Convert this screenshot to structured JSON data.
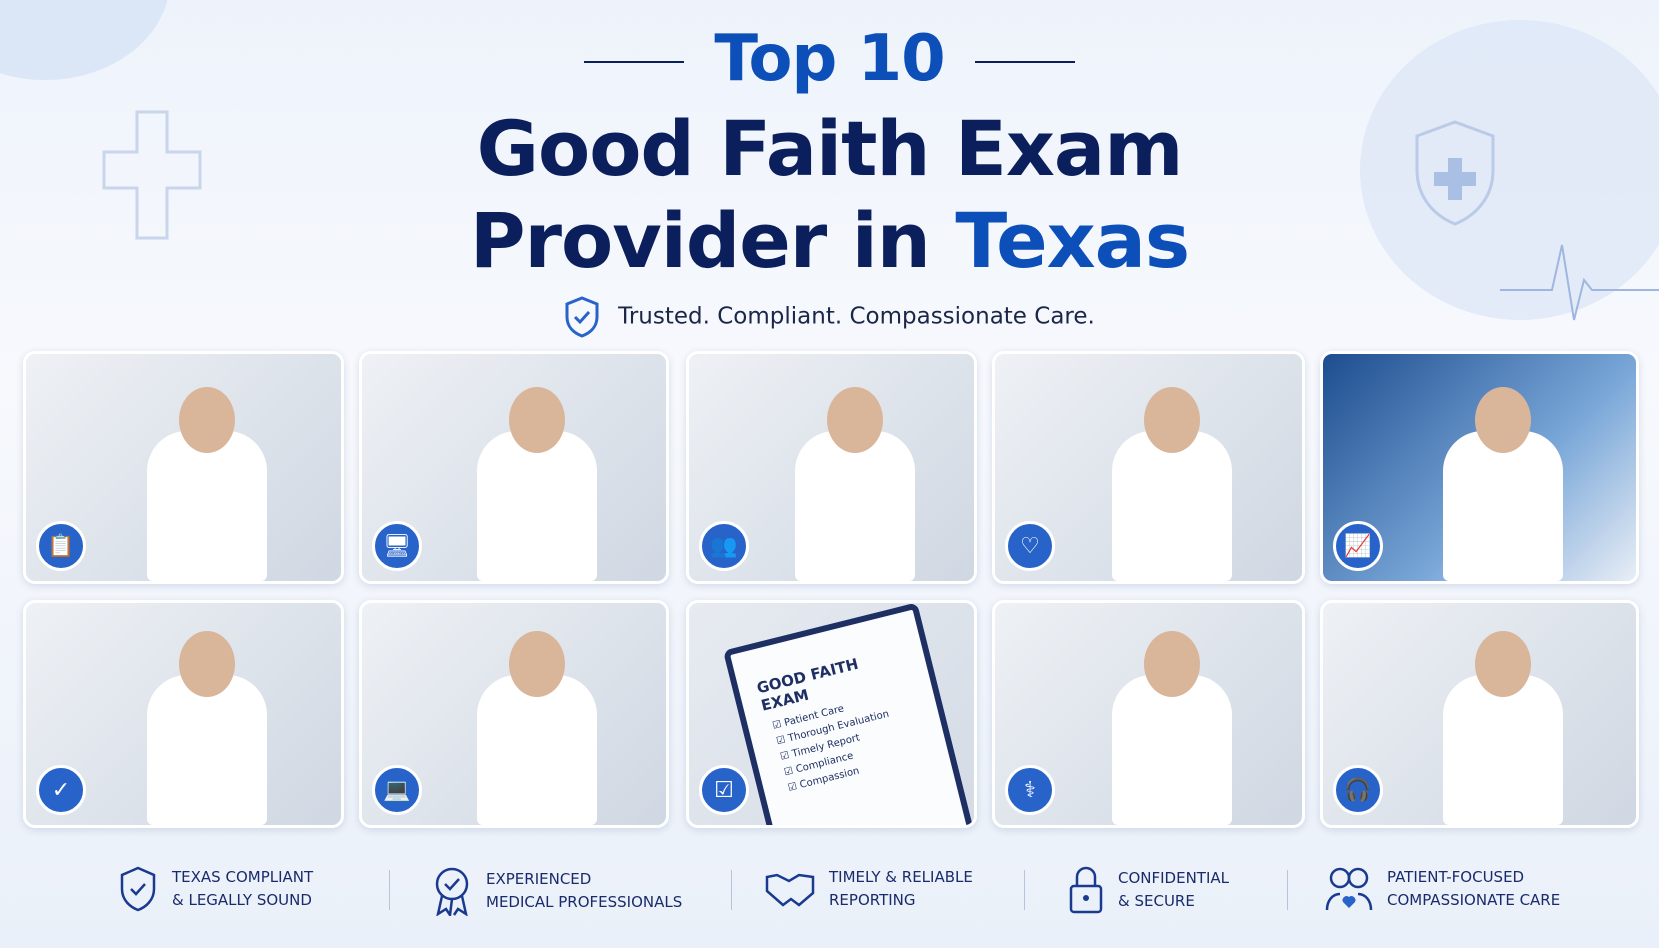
{
  "header": {
    "title_line1": "Top 10",
    "title_line2": "Good Faith Exam",
    "title_line3_part1": "Provider in ",
    "title_line3_part2": "Texas",
    "tagline": "Trusted. Compliant. Compassionate Care."
  },
  "colors": {
    "navy": "#0b1f5c",
    "accent": "#0d4fb8",
    "badge": "#2763c9"
  },
  "cards": [
    {
      "icon": "clipboard-icon",
      "glyph": "📋"
    },
    {
      "icon": "monitor-icon",
      "glyph": "🖥"
    },
    {
      "icon": "group-icon",
      "glyph": "👥"
    },
    {
      "icon": "heart-hands-icon",
      "glyph": "♡"
    },
    {
      "icon": "chart-icon",
      "glyph": "📈"
    },
    {
      "icon": "shield-check-icon",
      "glyph": "✓"
    },
    {
      "icon": "laptop-icon",
      "glyph": "💻"
    },
    {
      "icon": "checklist-icon",
      "glyph": "☑"
    },
    {
      "icon": "xray-icon",
      "glyph": "⚕"
    },
    {
      "icon": "headset-icon",
      "glyph": "🎧"
    }
  ],
  "clipboard": {
    "title": "GOOD FAITH EXAM",
    "items": [
      "Patient Care",
      "Thorough Evaluation",
      "Timely Report",
      "Compliance",
      "Compassion"
    ]
  },
  "footer": [
    {
      "icon": "shield-check-icon",
      "line1": "TEXAS COMPLIANT",
      "line2": "& LEGALLY SOUND"
    },
    {
      "icon": "award-ribbon-icon",
      "line1": "EXPERIENCED",
      "line2": "MEDICAL PROFESSIONALS"
    },
    {
      "icon": "handshake-icon",
      "line1": "TIMELY & RELIABLE",
      "line2": "REPORTING"
    },
    {
      "icon": "lock-icon",
      "line1": "CONFIDENTIAL",
      "line2": "& SECURE"
    },
    {
      "icon": "patients-icon",
      "line1": "PATIENT-FOCUSED",
      "line2": "COMPASSIONATE CARE"
    }
  ]
}
